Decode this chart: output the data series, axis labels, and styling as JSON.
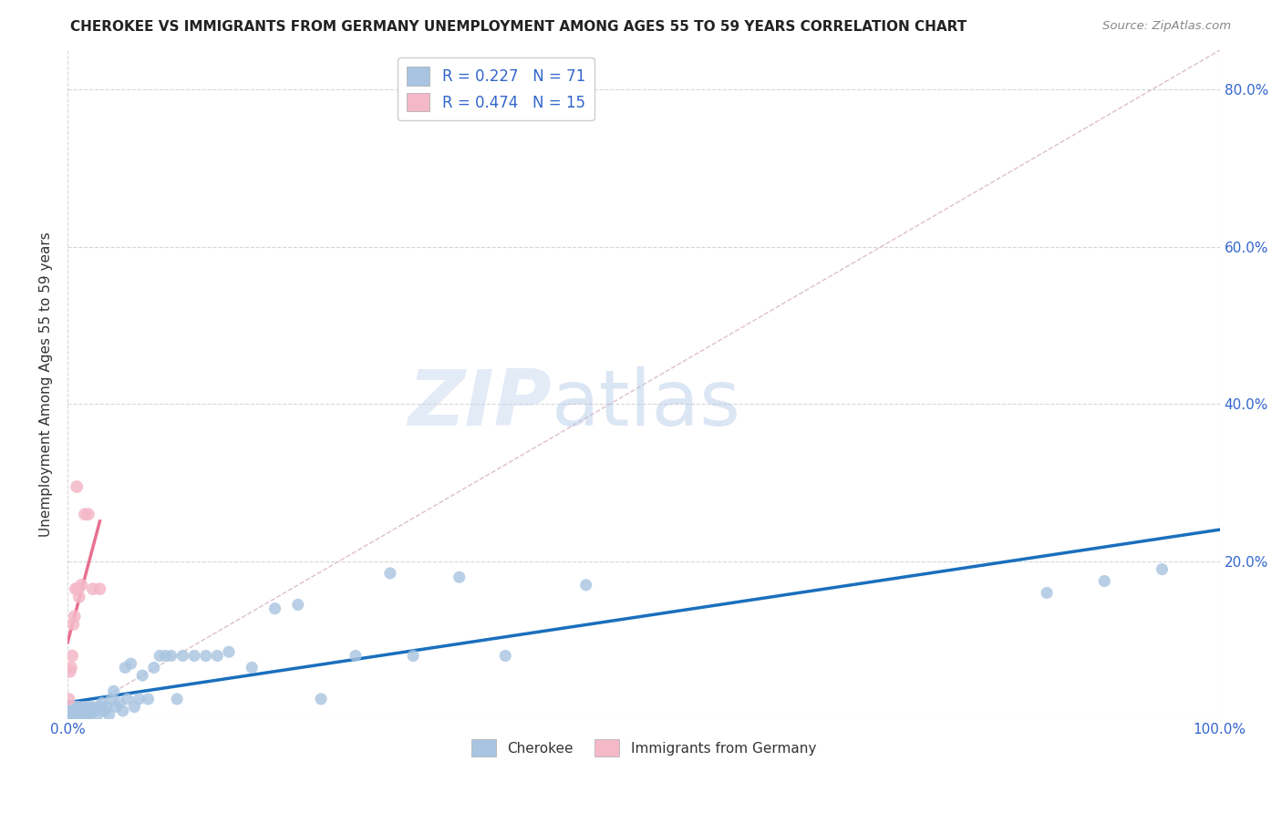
{
  "title": "CHEROKEE VS IMMIGRANTS FROM GERMANY UNEMPLOYMENT AMONG AGES 55 TO 59 YEARS CORRELATION CHART",
  "source": "Source: ZipAtlas.com",
  "ylabel": "Unemployment Among Ages 55 to 59 years",
  "xlim": [
    0.0,
    1.0
  ],
  "ylim": [
    0.0,
    0.85
  ],
  "legend_R1": "0.227",
  "legend_N1": "71",
  "legend_R2": "0.474",
  "legend_N2": "15",
  "cherokee_color": "#a8c4e0",
  "germany_color": "#f4b8c8",
  "trendline_cherokee_color": "#1a6fbd",
  "trendline_germany_color": "#e87090",
  "diagonal_color": "#d8b8c8",
  "watermark_zip": "ZIP",
  "watermark_atlas": "atlas",
  "background_color": "#ffffff",
  "cherokee_x": [
    0.001,
    0.002,
    0.003,
    0.003,
    0.004,
    0.004,
    0.005,
    0.005,
    0.006,
    0.006,
    0.007,
    0.007,
    0.008,
    0.008,
    0.009,
    0.009,
    0.01,
    0.01,
    0.011,
    0.012,
    0.013,
    0.014,
    0.015,
    0.016,
    0.017,
    0.018,
    0.019,
    0.02,
    0.022,
    0.024,
    0.026,
    0.028,
    0.03,
    0.032,
    0.034,
    0.036,
    0.038,
    0.04,
    0.042,
    0.045,
    0.048,
    0.05,
    0.052,
    0.055,
    0.058,
    0.062,
    0.065,
    0.07,
    0.075,
    0.08,
    0.085,
    0.09,
    0.095,
    0.1,
    0.11,
    0.12,
    0.13,
    0.14,
    0.16,
    0.18,
    0.2,
    0.22,
    0.25,
    0.28,
    0.3,
    0.34,
    0.38,
    0.45,
    0.85,
    0.9,
    0.95
  ],
  "cherokee_y": [
    0.005,
    0.01,
    0.005,
    0.01,
    0.005,
    0.015,
    0.005,
    0.01,
    0.005,
    0.015,
    0.005,
    0.01,
    0.005,
    0.015,
    0.005,
    0.01,
    0.005,
    0.015,
    0.005,
    0.01,
    0.005,
    0.015,
    0.005,
    0.01,
    0.005,
    0.015,
    0.005,
    0.01,
    0.015,
    0.01,
    0.005,
    0.015,
    0.02,
    0.01,
    0.015,
    0.005,
    0.025,
    0.035,
    0.015,
    0.02,
    0.01,
    0.065,
    0.025,
    0.07,
    0.015,
    0.025,
    0.055,
    0.025,
    0.065,
    0.08,
    0.08,
    0.08,
    0.025,
    0.08,
    0.08,
    0.08,
    0.08,
    0.085,
    0.065,
    0.14,
    0.145,
    0.025,
    0.08,
    0.185,
    0.08,
    0.18,
    0.08,
    0.17,
    0.16,
    0.175,
    0.19
  ],
  "germany_x": [
    0.001,
    0.002,
    0.003,
    0.004,
    0.005,
    0.006,
    0.007,
    0.008,
    0.009,
    0.01,
    0.012,
    0.015,
    0.018,
    0.022,
    0.028
  ],
  "germany_y": [
    0.025,
    0.06,
    0.065,
    0.08,
    0.12,
    0.13,
    0.165,
    0.295,
    0.165,
    0.155,
    0.17,
    0.26,
    0.26,
    0.165,
    0.165
  ]
}
